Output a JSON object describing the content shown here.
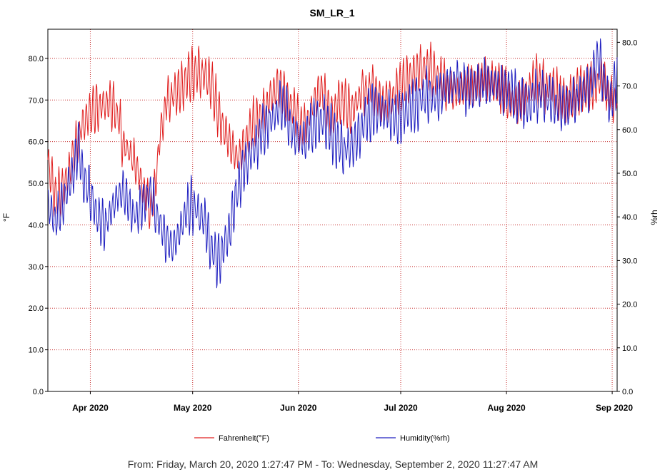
{
  "chart_data": {
    "type": "line",
    "title": "SM_LR_1",
    "ylabel_left": "°F",
    "ylabel_right": "%rh",
    "ylim_left": [
      0,
      87
    ],
    "ylim_right": [
      0,
      83
    ],
    "yticks_left": [
      0,
      10,
      20,
      30,
      40,
      50,
      60,
      70,
      80
    ],
    "yticks_left_labels": [
      "0.0",
      "10.0",
      "20.0",
      "30.0",
      "40.0",
      "50.0",
      "60.0",
      "70.0",
      "80.0"
    ],
    "yticks_right": [
      0,
      10,
      20,
      30,
      40,
      50,
      60,
      70,
      80
    ],
    "yticks_right_labels": [
      "0.0",
      "10.0",
      "20.0",
      "30.0",
      "40.0",
      "50.0",
      "60.0",
      "70.0",
      "80.0"
    ],
    "xlim_days": [
      0,
      166.9
    ],
    "xticks": [
      {
        "day": 12.45,
        "label": "Apr 2020"
      },
      {
        "day": 42.45,
        "label": "May 2020"
      },
      {
        "day": 73.45,
        "label": "Jun 2020"
      },
      {
        "day": 103.45,
        "label": "Jul 2020"
      },
      {
        "day": 134.45,
        "label": "Aug 2020"
      },
      {
        "day": 165.45,
        "label": "Sep 2020"
      }
    ],
    "grid": true,
    "legend_position": "bottom",
    "series": [
      {
        "name": "Fahrenheit(°F)",
        "axis": "left",
        "color": "#e02020",
        "anchors_day": [
          0,
          2,
          4,
          6,
          8,
          10,
          12,
          14,
          16,
          18,
          20,
          22,
          24,
          26,
          28,
          30,
          31,
          33,
          35,
          38,
          40,
          42,
          44,
          46,
          48,
          49,
          50,
          51,
          53,
          55,
          56,
          58,
          60,
          62,
          64,
          66,
          68,
          70,
          72,
          74,
          75,
          77,
          80,
          83,
          86,
          89,
          92,
          95,
          98,
          101,
          104,
          107,
          110,
          113,
          116,
          119,
          122,
          125,
          128,
          131,
          134,
          137,
          140,
          143,
          146,
          149,
          152,
          155,
          158,
          161,
          163,
          165,
          166.9
        ],
        "anchors_value": [
          55,
          47,
          48,
          52,
          58,
          64,
          66,
          68,
          69,
          69,
          68,
          60,
          57,
          54,
          48,
          44,
          46,
          62,
          70,
          72,
          74,
          76,
          77,
          76,
          74,
          70,
          67,
          64,
          60,
          57,
          56,
          60,
          64,
          66,
          68,
          72,
          73,
          70,
          68,
          64,
          63,
          67,
          73,
          66,
          70,
          67,
          72,
          73,
          69,
          71,
          74,
          76,
          78,
          77,
          74,
          72,
          73,
          74,
          75,
          74,
          72,
          69,
          71,
          75,
          73,
          72,
          69,
          72,
          73,
          74,
          75,
          70,
          71
        ],
        "amplitude": 4.5,
        "noise_seed": 7
      },
      {
        "name": "Humidity(%rh)",
        "axis": "right",
        "color": "#2020c0",
        "anchors_day": [
          0,
          2,
          4,
          6,
          8,
          9,
          10,
          12,
          14,
          16,
          18,
          20,
          22,
          24,
          26,
          28,
          30,
          32,
          34,
          36,
          38,
          40,
          42,
          44,
          46,
          47,
          48,
          49,
          50,
          51,
          53,
          55,
          57,
          59,
          61,
          63,
          66,
          69,
          72,
          75,
          78,
          81,
          84,
          87,
          90,
          93,
          96,
          99,
          102,
          105,
          108,
          111,
          114,
          117,
          120,
          123,
          126,
          129,
          132,
          135,
          138,
          141,
          144,
          147,
          150,
          153,
          156,
          159,
          161,
          163,
          164,
          165,
          166,
          166.9
        ],
        "anchors_value": [
          43,
          39,
          42,
          47,
          51,
          58,
          50,
          46,
          41,
          38,
          40,
          44,
          46,
          42,
          40,
          43,
          46,
          40,
          36,
          33,
          35,
          40,
          43,
          41,
          39,
          36,
          33,
          31,
          30,
          32,
          36,
          44,
          50,
          54,
          56,
          60,
          63,
          66,
          59,
          57,
          61,
          62,
          58,
          55,
          57,
          62,
          65,
          64,
          62,
          64,
          66,
          68,
          67,
          70,
          71,
          69,
          70,
          71,
          70,
          69,
          67,
          66,
          68,
          67,
          65,
          66,
          68,
          70,
          76,
          72,
          67,
          66,
          69,
          73
        ],
        "amplitude": 4.5,
        "noise_seed": 13
      }
    ],
    "footer": "From: Friday, March 20, 2020 1:27:47 PM  -  To: Wednesday, September 2, 2020 11:27:47 AM"
  }
}
